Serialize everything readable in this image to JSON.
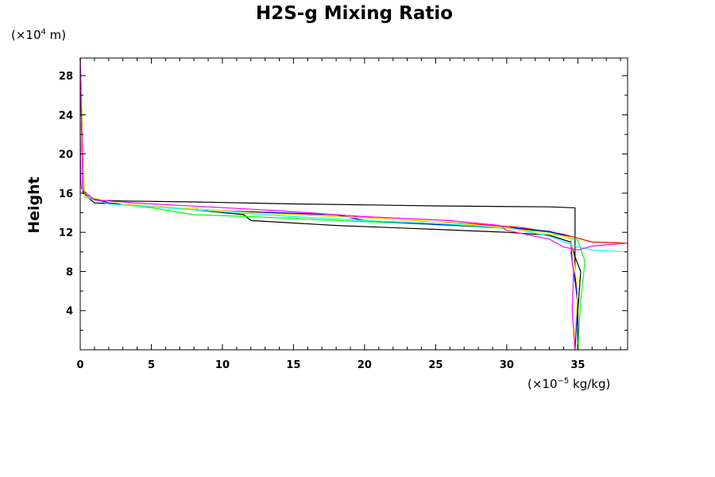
{
  "chart_data": {
    "type": "line",
    "title": "H2S-g Mixing Ratio",
    "ylabel": "Height",
    "yunit_prefix": "(×10",
    "yunit_exp": "4",
    "yunit_suffix": " m)",
    "xunit_prefix": "(×10",
    "xunit_exp": "−5",
    "xunit_suffix": " kg/kg)",
    "xlim": [
      0,
      38.5
    ],
    "ylim": [
      0,
      29.8
    ],
    "xticks": [
      0,
      5,
      10,
      15,
      20,
      25,
      30,
      35
    ],
    "yticks": [
      4,
      8,
      12,
      16,
      20,
      24,
      28
    ],
    "series": [
      {
        "color": "#000000",
        "x": [
          0,
          0.2,
          1,
          3,
          8,
          15,
          25,
          33,
          34.8,
          34.8,
          34.8,
          35.0,
          35.0
        ],
        "y": [
          29.8,
          16.0,
          15.3,
          15.2,
          15.1,
          14.9,
          14.7,
          14.6,
          14.5,
          11.0,
          8.0,
          4.0,
          0.0
        ]
      },
      {
        "color": "#000000",
        "x": [
          0,
          0.2,
          1,
          4,
          8,
          11.5,
          12,
          18,
          25,
          30,
          33,
          34.5,
          34.8,
          35.2,
          35.0,
          35.0
        ],
        "y": [
          29.8,
          16.0,
          15.0,
          14.8,
          14.3,
          13.8,
          13.2,
          12.7,
          12.3,
          12.0,
          11.7,
          11.0,
          9.5,
          8.0,
          4.0,
          0.0
        ]
      },
      {
        "color": "#00ff00",
        "x": [
          0,
          0.3,
          2,
          5,
          8,
          12,
          18,
          25,
          30,
          33,
          35,
          35.5,
          35.2,
          35.0
        ],
        "y": [
          29.8,
          15.8,
          15.0,
          14.5,
          13.8,
          13.6,
          13.2,
          12.8,
          12.4,
          12.0,
          11.2,
          9.0,
          5.0,
          0.0
        ]
      },
      {
        "color": "#ff0000",
        "x": [
          0,
          0.3,
          2,
          6,
          10,
          14,
          20,
          26,
          31,
          34,
          36,
          38.5
        ],
        "y": [
          29.8,
          15.7,
          14.9,
          14.6,
          14.2,
          13.9,
          13.5,
          13.0,
          12.5,
          11.8,
          11.0,
          10.9
        ]
      },
      {
        "color": "#0000ff",
        "x": [
          0,
          0.3,
          2,
          6,
          10,
          14,
          18,
          20,
          25,
          30,
          33,
          34.5,
          34.6,
          35.0,
          34.8
        ],
        "y": [
          29.8,
          15.8,
          15.0,
          14.6,
          14.2,
          14.0,
          13.8,
          13.2,
          12.8,
          12.5,
          12.1,
          11.5,
          9.0,
          5.0,
          0.0
        ]
      },
      {
        "color": "#00ffff",
        "x": [
          0,
          0.3,
          2,
          6,
          10,
          15,
          20,
          25,
          30,
          33,
          35,
          36,
          38.5
        ],
        "y": [
          29.8,
          15.6,
          14.9,
          14.5,
          14.1,
          13.6,
          13.2,
          12.9,
          12.5,
          11.6,
          10.5,
          10.2,
          10.0
        ]
      },
      {
        "color": "#ffff00",
        "x": [
          0,
          0.3,
          3,
          7,
          12,
          18,
          24,
          29,
          32,
          34.5,
          35.0,
          34.7
        ],
        "y": [
          29.8,
          15.7,
          14.9,
          14.5,
          14.0,
          13.6,
          13.2,
          12.6,
          12.0,
          11.5,
          6.0,
          0.0
        ]
      },
      {
        "color": "#ff00ff",
        "x": [
          0,
          0.2,
          1,
          5,
          9,
          14,
          20,
          26,
          29.5,
          30,
          33,
          34,
          35,
          36,
          38.5
        ],
        "y": [
          29.8,
          16.3,
          15.3,
          14.9,
          14.6,
          14.2,
          13.6,
          13.2,
          12.7,
          12.2,
          11.3,
          10.5,
          10.2,
          10.6,
          10.9
        ]
      },
      {
        "color": "#ff00ff",
        "x": [
          34.5,
          34.7,
          34.6,
          34.8
        ],
        "y": [
          10.0,
          8.0,
          4.0,
          0.0
        ]
      },
      {
        "color": "#ff00ff",
        "x": [
          0,
          0,
          0.05,
          0.1
        ],
        "y": [
          29.8,
          22.0,
          17.0,
          16.4
        ]
      }
    ]
  }
}
